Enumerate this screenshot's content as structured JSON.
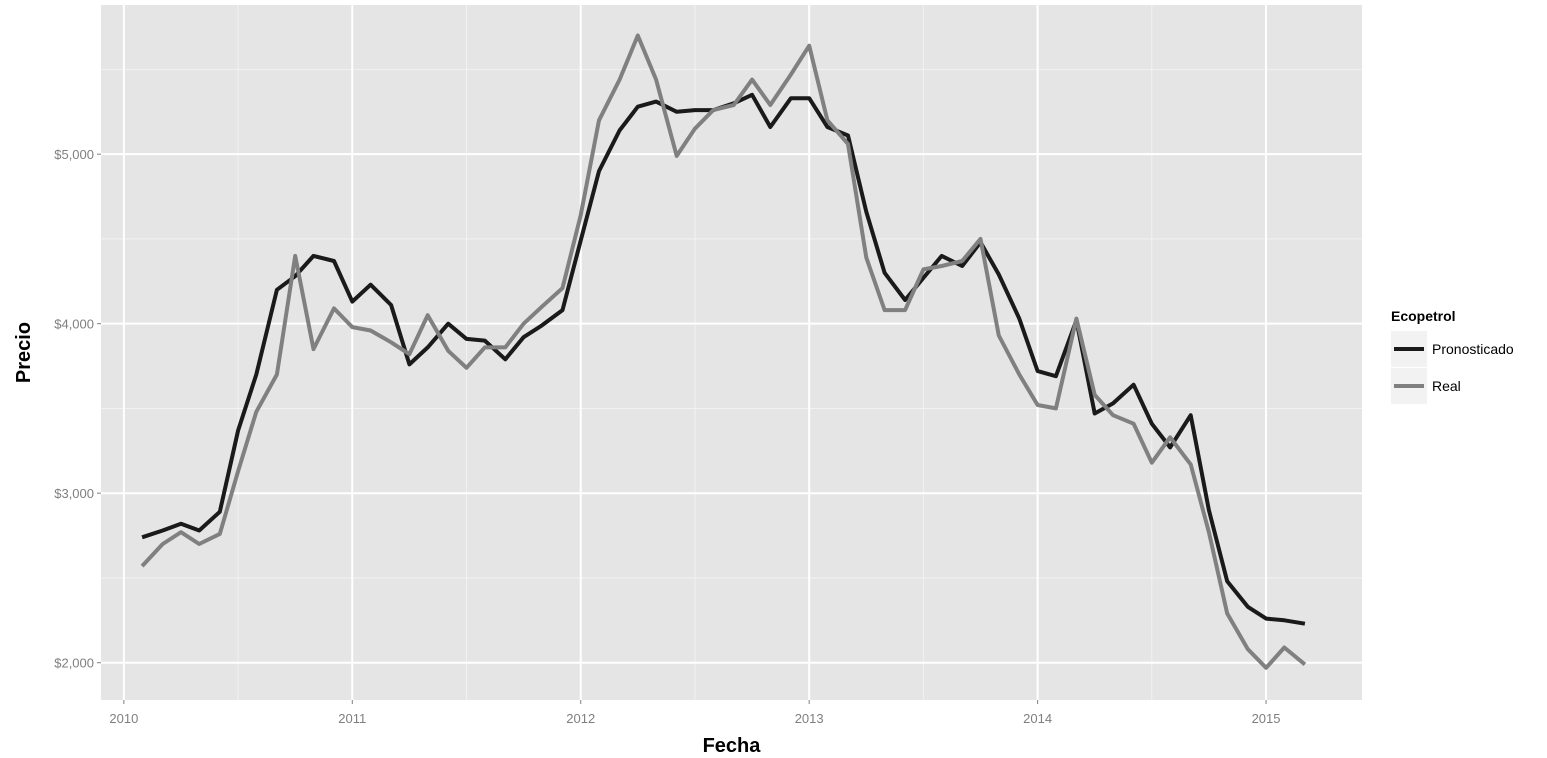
{
  "chart_data": {
    "type": "line",
    "title": "",
    "xlabel": "Fecha",
    "ylabel": "Precio",
    "xlim": [
      2009.9,
      2015.42
    ],
    "ylim": [
      1780,
      5880
    ],
    "x_ticks": [
      2010,
      2011,
      2012,
      2013,
      2014,
      2015
    ],
    "x_tick_labels": [
      "2010",
      "2011",
      "2012",
      "2013",
      "2014",
      "2015"
    ],
    "y_ticks": [
      2000,
      3000,
      4000,
      5000
    ],
    "y_tick_labels": [
      "$2,000",
      "$3,000",
      "$4,000",
      "$5,000"
    ],
    "grid": true,
    "legend": {
      "title": "Ecopetrol",
      "position": "right"
    },
    "colors": {
      "panel_background": "#e5e5e5",
      "grid_major": "#ffffff",
      "grid_minor": "#f2f2f2",
      "pronosticado": "#1a1a1a",
      "real": "#808080"
    },
    "series": [
      {
        "name": "Pronosticado",
        "color": "#1a1a1a",
        "points": [
          [
            2010.08,
            2740
          ],
          [
            2010.17,
            2780
          ],
          [
            2010.25,
            2820
          ],
          [
            2010.33,
            2780
          ],
          [
            2010.42,
            2890
          ],
          [
            2010.5,
            3370
          ],
          [
            2010.58,
            3700
          ],
          [
            2010.67,
            4200
          ],
          [
            2010.75,
            4280
          ],
          [
            2010.83,
            4400
          ],
          [
            2010.92,
            4370
          ],
          [
            2011.0,
            4130
          ],
          [
            2011.08,
            4230
          ],
          [
            2011.17,
            4110
          ],
          [
            2011.25,
            3760
          ],
          [
            2011.33,
            3860
          ],
          [
            2011.42,
            4000
          ],
          [
            2011.5,
            3910
          ],
          [
            2011.58,
            3900
          ],
          [
            2011.67,
            3790
          ],
          [
            2011.75,
            3920
          ],
          [
            2011.83,
            3990
          ],
          [
            2011.92,
            4080
          ],
          [
            2012.0,
            4490
          ],
          [
            2012.08,
            4900
          ],
          [
            2012.17,
            5140
          ],
          [
            2012.25,
            5280
          ],
          [
            2012.33,
            5310
          ],
          [
            2012.42,
            5250
          ],
          [
            2012.5,
            5260
          ],
          [
            2012.58,
            5260
          ],
          [
            2012.67,
            5300
          ],
          [
            2012.75,
            5350
          ],
          [
            2012.83,
            5160
          ],
          [
            2012.92,
            5330
          ],
          [
            2013.0,
            5330
          ],
          [
            2013.08,
            5160
          ],
          [
            2013.17,
            5110
          ],
          [
            2013.25,
            4660
          ],
          [
            2013.33,
            4300
          ],
          [
            2013.42,
            4140
          ],
          [
            2013.5,
            4270
          ],
          [
            2013.58,
            4400
          ],
          [
            2013.67,
            4340
          ],
          [
            2013.75,
            4480
          ],
          [
            2013.83,
            4290
          ],
          [
            2013.92,
            4030
          ],
          [
            2014.0,
            3720
          ],
          [
            2014.08,
            3690
          ],
          [
            2014.17,
            4020
          ],
          [
            2014.25,
            3470
          ],
          [
            2014.33,
            3530
          ],
          [
            2014.42,
            3640
          ],
          [
            2014.5,
            3410
          ],
          [
            2014.58,
            3270
          ],
          [
            2014.67,
            3460
          ],
          [
            2014.75,
            2900
          ],
          [
            2014.83,
            2480
          ],
          [
            2014.92,
            2330
          ],
          [
            2015.0,
            2260
          ],
          [
            2015.08,
            2250
          ],
          [
            2015.17,
            2230
          ]
        ]
      },
      {
        "name": "Real",
        "color": "#808080",
        "points": [
          [
            2010.08,
            2570
          ],
          [
            2010.17,
            2700
          ],
          [
            2010.25,
            2770
          ],
          [
            2010.33,
            2700
          ],
          [
            2010.42,
            2760
          ],
          [
            2010.5,
            3130
          ],
          [
            2010.58,
            3480
          ],
          [
            2010.67,
            3700
          ],
          [
            2010.75,
            4400
          ],
          [
            2010.83,
            3850
          ],
          [
            2010.92,
            4090
          ],
          [
            2011.0,
            3980
          ],
          [
            2011.08,
            3960
          ],
          [
            2011.17,
            3890
          ],
          [
            2011.25,
            3820
          ],
          [
            2011.33,
            4050
          ],
          [
            2011.42,
            3840
          ],
          [
            2011.5,
            3740
          ],
          [
            2011.58,
            3860
          ],
          [
            2011.67,
            3860
          ],
          [
            2011.75,
            4000
          ],
          [
            2011.83,
            4100
          ],
          [
            2011.92,
            4210
          ],
          [
            2012.0,
            4640
          ],
          [
            2012.08,
            5200
          ],
          [
            2012.17,
            5440
          ],
          [
            2012.25,
            5700
          ],
          [
            2012.33,
            5440
          ],
          [
            2012.42,
            4990
          ],
          [
            2012.5,
            5150
          ],
          [
            2012.58,
            5260
          ],
          [
            2012.67,
            5290
          ],
          [
            2012.75,
            5440
          ],
          [
            2012.83,
            5290
          ],
          [
            2012.92,
            5470
          ],
          [
            2013.0,
            5640
          ],
          [
            2013.08,
            5200
          ],
          [
            2013.17,
            5060
          ],
          [
            2013.25,
            4390
          ],
          [
            2013.33,
            4080
          ],
          [
            2013.42,
            4080
          ],
          [
            2013.5,
            4320
          ],
          [
            2013.58,
            4340
          ],
          [
            2013.67,
            4370
          ],
          [
            2013.75,
            4500
          ],
          [
            2013.83,
            3930
          ],
          [
            2013.92,
            3700
          ],
          [
            2014.0,
            3520
          ],
          [
            2014.08,
            3500
          ],
          [
            2014.17,
            4030
          ],
          [
            2014.25,
            3580
          ],
          [
            2014.33,
            3460
          ],
          [
            2014.42,
            3410
          ],
          [
            2014.5,
            3180
          ],
          [
            2014.58,
            3330
          ],
          [
            2014.67,
            3170
          ],
          [
            2014.75,
            2770
          ],
          [
            2014.83,
            2290
          ],
          [
            2014.92,
            2080
          ],
          [
            2015.0,
            1970
          ],
          [
            2015.08,
            2090
          ],
          [
            2015.17,
            1990
          ]
        ]
      }
    ]
  }
}
